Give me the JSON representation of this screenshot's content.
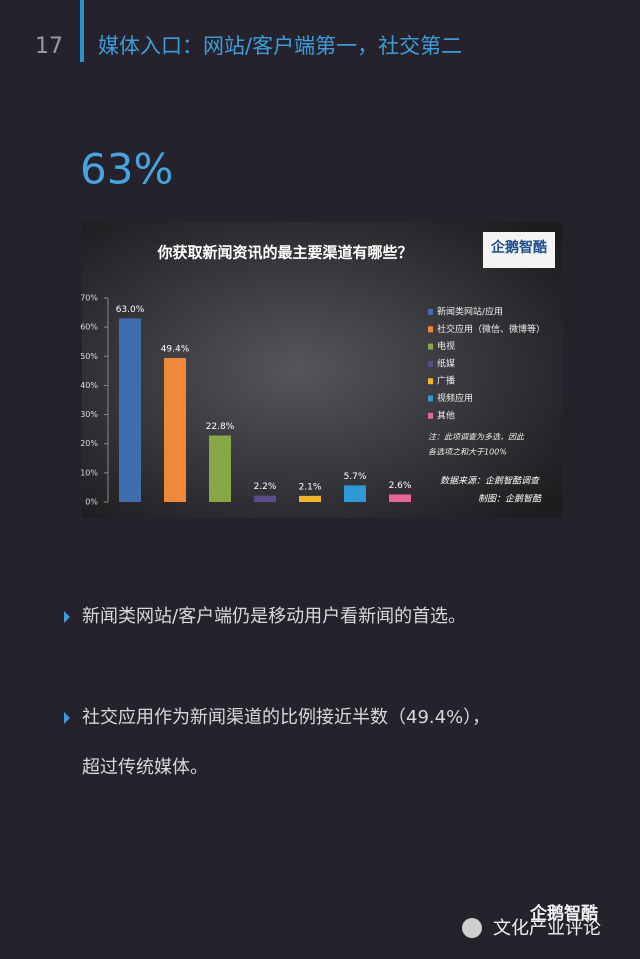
{
  "page_number": "17",
  "header_title": "媒体入口：网站/客户端第一，社交第二",
  "headline_stat": "63%",
  "chart_data": {
    "type": "bar",
    "title": "你获取新闻资讯的最主要渠道有哪些？",
    "logo": "企鹅智酷",
    "categories": [
      "新闻类网站/应用",
      "社交应用（微信、微博等）",
      "电视",
      "纸媒",
      "广播",
      "视频应用",
      "其他"
    ],
    "values": [
      63.0,
      49.4,
      22.8,
      2.2,
      2.1,
      5.7,
      2.6
    ],
    "value_labels": [
      "63.0%",
      "49.4%",
      "22.8%",
      "2.2%",
      "2.1%",
      "5.7%",
      "2.6%"
    ],
    "colors": [
      "#3f6db0",
      "#f0883a",
      "#86a946",
      "#5b4a8c",
      "#f1b531",
      "#2f99d6",
      "#e5659b"
    ],
    "ylim": [
      0,
      70
    ],
    "yticks": [
      {
        "value": 0,
        "label": "0%"
      },
      {
        "value": 10,
        "label": "10%"
      },
      {
        "value": 20,
        "label": "20%"
      },
      {
        "value": 30,
        "label": "30%"
      },
      {
        "value": 40,
        "label": "40%"
      },
      {
        "value": 50,
        "label": "50%"
      },
      {
        "value": 60,
        "label": "60%"
      },
      {
        "value": 70,
        "label": "70%"
      }
    ],
    "legend": "right",
    "notes": [
      "注：此项调查为多选，因此",
      "各选项之和大于100%"
    ],
    "source": "数据来源：企鹅智酷调查",
    "credit": "制图：企鹅智酷"
  },
  "bullets": [
    [
      "新闻类网站/客户端仍是移动用户看新闻的首选。"
    ],
    [
      "社交应用作为新闻渠道的比例接近半数（49.4%），",
      "超过传统媒体。"
    ]
  ],
  "watermark": {
    "logo": "企鹅智酷",
    "account": "文化产业评论"
  }
}
